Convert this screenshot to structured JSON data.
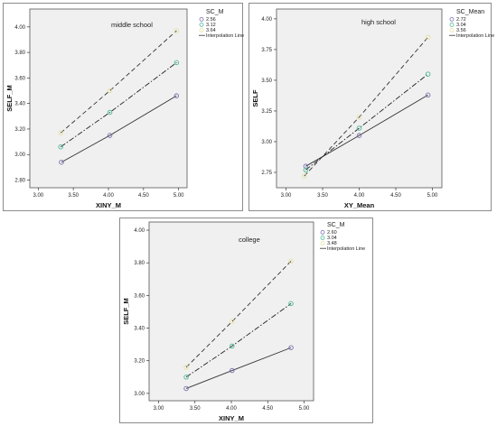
{
  "chart_data": [
    {
      "type": "line",
      "title": "middle school",
      "xlabel": "XINY_M",
      "ylabel": "SELF_M",
      "xlim": [
        2.88,
        5.12
      ],
      "ylim": [
        2.74,
        4.14
      ],
      "x_ticks": [
        "3.00",
        "3.50",
        "4.00",
        "4.50",
        "5.00"
      ],
      "y_ticks": [
        "2.80",
        "3.00",
        "3.20",
        "3.40",
        "3.60",
        "3.80",
        "4.00"
      ],
      "legend_title": "SC_M",
      "legend_placement": "top-right",
      "interpolation_label": "Interpolation Line",
      "series": [
        {
          "name": "2.56",
          "color": "#7b6fb0",
          "dash": "solid",
          "points": [
            {
              "x": 3.33,
              "y": 2.94
            },
            {
              "x": 4.02,
              "y": 3.15
            },
            {
              "x": 4.97,
              "y": 3.46
            }
          ]
        },
        {
          "name": "3.12",
          "color": "#4cb89a",
          "dash": "dashdot",
          "points": [
            {
              "x": 3.32,
              "y": 3.06
            },
            {
              "x": 4.02,
              "y": 3.33
            },
            {
              "x": 4.97,
              "y": 3.72
            }
          ]
        },
        {
          "name": "3.64",
          "color": "#e8e0a0",
          "dash": "dashed",
          "points": [
            {
              "x": 3.32,
              "y": 3.17
            },
            {
              "x": 4.02,
              "y": 3.5
            },
            {
              "x": 4.97,
              "y": 3.97
            }
          ]
        }
      ]
    },
    {
      "type": "line",
      "title": "high school",
      "xlabel": "XY_Mean",
      "ylabel": "SELF",
      "xlim": [
        2.87,
        5.13
      ],
      "ylim": [
        2.625,
        4.08
      ],
      "x_ticks": [
        "3.00",
        "3.50",
        "4.00",
        "4.50",
        "5.00"
      ],
      "y_ticks": [
        "2.75",
        "3.00",
        "3.25",
        "3.50",
        "3.75",
        "4.00"
      ],
      "legend_title": "SC_Mean",
      "legend_placement": "top-right",
      "interpolation_label": "Interpolation Line",
      "series": [
        {
          "name": "2.72",
          "color": "#7b6fb0",
          "dash": "solid",
          "points": [
            {
              "x": 3.27,
              "y": 2.8
            },
            {
              "x": 4.0,
              "y": 3.05
            },
            {
              "x": 4.94,
              "y": 3.38
            }
          ]
        },
        {
          "name": "3.04",
          "color": "#4cb89a",
          "dash": "dashdot",
          "points": [
            {
              "x": 3.27,
              "y": 2.77
            },
            {
              "x": 4.0,
              "y": 3.11
            },
            {
              "x": 4.94,
              "y": 3.55
            }
          ]
        },
        {
          "name": "3.56",
          "color": "#e8e0a0",
          "dash": "dashed",
          "points": [
            {
              "x": 3.25,
              "y": 2.72
            },
            {
              "x": 4.0,
              "y": 3.2
            },
            {
              "x": 4.94,
              "y": 3.85
            }
          ]
        }
      ]
    },
    {
      "type": "line",
      "title": "college",
      "xlabel": "XINY_M",
      "ylabel": "SELF_M",
      "xlim": [
        2.87,
        5.13
      ],
      "ylim": [
        2.955,
        4.05
      ],
      "x_ticks": [
        "3.00",
        "3.50",
        "4.00",
        "4.50",
        "5.00"
      ],
      "y_ticks": [
        "3.00",
        "3.20",
        "3.40",
        "3.60",
        "3.80",
        "4.00"
      ],
      "legend_title": "SC_M",
      "legend_placement": "top-right",
      "interpolation_label": "Interpolation Line",
      "series": [
        {
          "name": "2.60",
          "color": "#7b6fb0",
          "dash": "solid",
          "points": [
            {
              "x": 3.38,
              "y": 3.03
            },
            {
              "x": 4.01,
              "y": 3.14
            },
            {
              "x": 4.82,
              "y": 3.28
            }
          ]
        },
        {
          "name": "3.04",
          "color": "#4cb89a",
          "dash": "dashdot",
          "points": [
            {
              "x": 3.38,
              "y": 3.1
            },
            {
              "x": 4.01,
              "y": 3.29
            },
            {
              "x": 4.82,
              "y": 3.55
            }
          ]
        },
        {
          "name": "3.48",
          "color": "#e8e0a0",
          "dash": "dashed",
          "points": [
            {
              "x": 3.38,
              "y": 3.16
            },
            {
              "x": 4.01,
              "y": 3.44
            },
            {
              "x": 4.82,
              "y": 3.81
            }
          ]
        }
      ]
    }
  ]
}
